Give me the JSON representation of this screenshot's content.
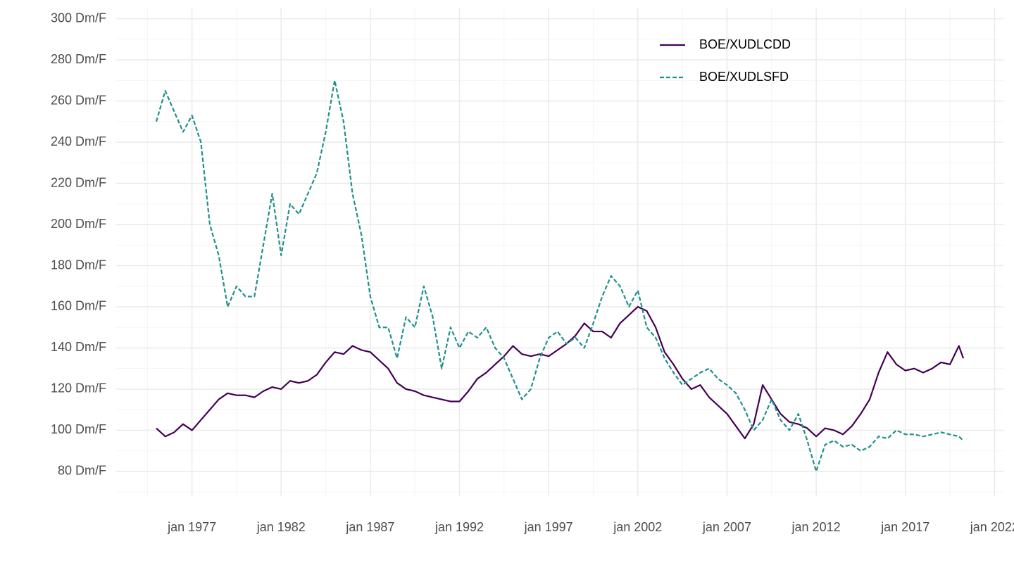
{
  "chart_data": {
    "type": "line",
    "x": [
      "1975-01",
      "1975-07",
      "1976-01",
      "1976-07",
      "1977-01",
      "1977-07",
      "1978-01",
      "1978-07",
      "1979-01",
      "1979-07",
      "1980-01",
      "1980-07",
      "1981-01",
      "1981-07",
      "1982-01",
      "1982-07",
      "1983-01",
      "1983-07",
      "1984-01",
      "1984-07",
      "1985-01",
      "1985-07",
      "1986-01",
      "1986-07",
      "1987-01",
      "1987-07",
      "1988-01",
      "1988-07",
      "1989-01",
      "1989-07",
      "1990-01",
      "1990-07",
      "1991-01",
      "1991-07",
      "1992-01",
      "1992-07",
      "1993-01",
      "1993-07",
      "1994-01",
      "1994-07",
      "1995-01",
      "1995-07",
      "1996-01",
      "1996-07",
      "1997-01",
      "1997-07",
      "1998-01",
      "1998-07",
      "1999-01",
      "1999-07",
      "2000-01",
      "2000-07",
      "2001-01",
      "2001-07",
      "2002-01",
      "2002-07",
      "2003-01",
      "2003-07",
      "2004-01",
      "2004-07",
      "2005-01",
      "2005-07",
      "2006-01",
      "2006-07",
      "2007-01",
      "2007-07",
      "2008-01",
      "2008-07",
      "2009-01",
      "2009-07",
      "2010-01",
      "2010-07",
      "2011-01",
      "2011-07",
      "2012-01",
      "2012-07",
      "2013-01",
      "2013-07",
      "2014-01",
      "2014-07",
      "2015-01",
      "2015-07",
      "2016-01",
      "2016-07",
      "2017-01",
      "2017-07",
      "2018-01",
      "2018-07",
      "2019-01",
      "2019-07",
      "2020-01",
      "2020-04"
    ],
    "series": [
      {
        "name": "BOE/XUDLCDD",
        "color": "#440154",
        "dash": "solid",
        "values": [
          101,
          97,
          99,
          103,
          100,
          105,
          110,
          115,
          118,
          117,
          117,
          116,
          119,
          121,
          120,
          124,
          123,
          124,
          127,
          133,
          138,
          137,
          141,
          139,
          138,
          134,
          130,
          123,
          120,
          119,
          117,
          116,
          115,
          114,
          114,
          119,
          125,
          128,
          132,
          136,
          141,
          137,
          136,
          137,
          136,
          139,
          142,
          146,
          152,
          148,
          148,
          145,
          152,
          156,
          160,
          158,
          150,
          138,
          132,
          125,
          120,
          122,
          116,
          112,
          108,
          102,
          96,
          103,
          122,
          115,
          108,
          104,
          103,
          101,
          97,
          101,
          100,
          98,
          102,
          108,
          115,
          128,
          138,
          132,
          129,
          130,
          128,
          130,
          133,
          132,
          141,
          135
        ]
      },
      {
        "name": "BOE/XUDLSFD",
        "color": "#21908C",
        "dash": "dashed",
        "values": [
          250,
          265,
          255,
          245,
          253,
          240,
          200,
          185,
          160,
          170,
          165,
          165,
          190,
          215,
          185,
          210,
          205,
          215,
          225,
          245,
          270,
          250,
          215,
          195,
          165,
          150,
          150,
          135,
          155,
          150,
          170,
          155,
          130,
          150,
          140,
          148,
          145,
          150,
          140,
          135,
          125,
          115,
          120,
          135,
          145,
          148,
          142,
          145,
          140,
          152,
          165,
          175,
          170,
          160,
          168,
          150,
          145,
          135,
          128,
          122,
          125,
          128,
          130,
          125,
          122,
          118,
          110,
          100,
          105,
          115,
          105,
          100,
          108,
          95,
          80,
          93,
          95,
          92,
          93,
          90,
          92,
          97,
          96,
          100,
          98,
          98,
          97,
          98,
          99,
          98,
          97,
          95
        ]
      }
    ],
    "xlim": [
      "1972-10",
      "2022-07"
    ],
    "xticks": [
      {
        "value": "1977-01",
        "label": "jan 1977"
      },
      {
        "value": "1982-01",
        "label": "jan 1982"
      },
      {
        "value": "1987-01",
        "label": "jan 1987"
      },
      {
        "value": "1992-01",
        "label": "jan 1992"
      },
      {
        "value": "1997-01",
        "label": "jan 1997"
      },
      {
        "value": "2002-01",
        "label": "jan 2002"
      },
      {
        "value": "2007-01",
        "label": "jan 2007"
      },
      {
        "value": "2012-01",
        "label": "jan 2012"
      },
      {
        "value": "2017-01",
        "label": "jan 2017"
      },
      {
        "value": "2022-01",
        "label": "jan 2022"
      }
    ],
    "ylim": [
      68,
      305
    ],
    "yticks": [
      {
        "value": 80,
        "label": "80 Dm/F"
      },
      {
        "value": 100,
        "label": "100 Dm/F"
      },
      {
        "value": 120,
        "label": "120 Dm/F"
      },
      {
        "value": 140,
        "label": "140 Dm/F"
      },
      {
        "value": 160,
        "label": "160 Dm/F"
      },
      {
        "value": 180,
        "label": "180 Dm/F"
      },
      {
        "value": 200,
        "label": "200 Dm/F"
      },
      {
        "value": 220,
        "label": "220 Dm/F"
      },
      {
        "value": 240,
        "label": "240 Dm/F"
      },
      {
        "value": 260,
        "label": "260 Dm/F"
      },
      {
        "value": 280,
        "label": "280 Dm/F"
      },
      {
        "value": 300,
        "label": "300 Dm/F"
      }
    ],
    "grid": true,
    "legend": "top-right"
  }
}
